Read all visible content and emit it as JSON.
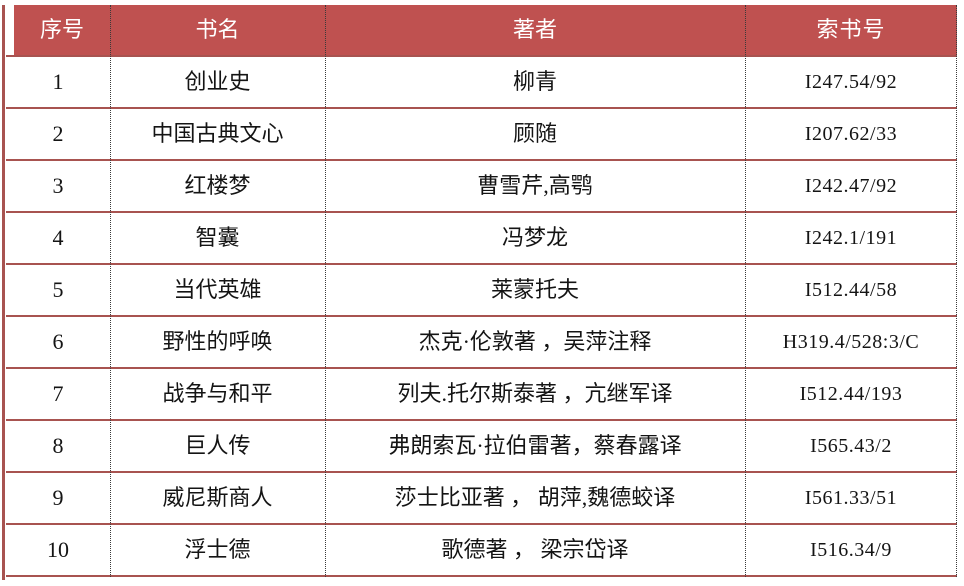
{
  "colors": {
    "header_bg": "#bf5150",
    "header_text": "#ffffff",
    "grid_red": "#a85350",
    "column_separator": "#3a3a3a",
    "body_text": "#141414"
  },
  "table": {
    "columns": [
      "序号",
      "书名",
      "著者",
      "索书号"
    ],
    "rows": [
      {
        "no": "1",
        "title": "创业史",
        "author": "柳青",
        "call_no": "I247.54/92"
      },
      {
        "no": "2",
        "title": "中国古典文心",
        "author": "顾随",
        "call_no": "I207.62/33"
      },
      {
        "no": "3",
        "title": "红楼梦",
        "author": "曹雪芹,高鹗",
        "call_no": "I242.47/92"
      },
      {
        "no": "4",
        "title": "智囊",
        "author": "冯梦龙",
        "call_no": "I242.1/191"
      },
      {
        "no": "5",
        "title": "当代英雄",
        "author": "莱蒙托夫",
        "call_no": "I512.44/58"
      },
      {
        "no": "6",
        "title": "野性的呼唤",
        "author": "杰克·伦敦著 ，吴萍注释",
        "call_no": "H319.4/528:3/C"
      },
      {
        "no": "7",
        "title": "战争与和平",
        "author": "列夫.托尔斯泰著 ，亢继军译",
        "call_no": "I512.44/193"
      },
      {
        "no": "8",
        "title": "巨人传",
        "author": "弗朗索瓦·拉伯雷著，蔡春露译",
        "call_no": "I565.43/2"
      },
      {
        "no": "9",
        "title": "威尼斯商人",
        "author": "莎士比亚著 ， 胡萍,魏德蛟译",
        "call_no": "I561.33/51"
      },
      {
        "no": "10",
        "title": "浮士德",
        "author": "歌德著 ， 梁宗岱译",
        "call_no": "I516.34/9"
      }
    ]
  }
}
